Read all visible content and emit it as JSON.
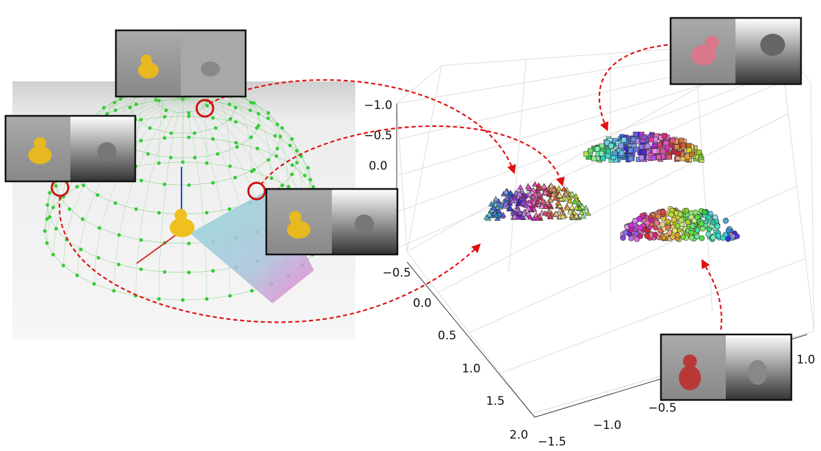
{
  "axes": {
    "z_ticks": [
      "−1.0",
      "−0.5",
      "0.0"
    ],
    "y_ticks": [
      "−0.5",
      "0.0",
      "0.5",
      "1.0",
      "1.5",
      "2.0"
    ],
    "x_ticks": [
      "−1.5",
      "−1.0",
      "−0.5",
      "1.0"
    ]
  }
}
